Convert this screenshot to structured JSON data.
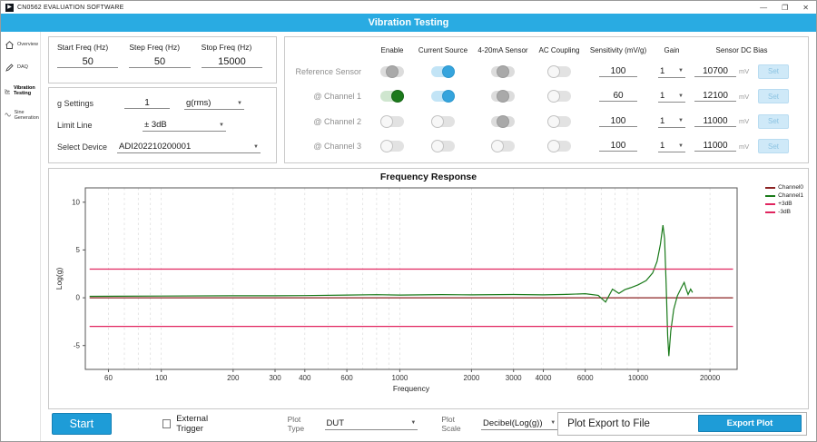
{
  "titlebar": {
    "app_title": "CN0562 EVALUATION SOFTWARE",
    "minimize": "—",
    "maximize": "❐",
    "close": "✕"
  },
  "header": {
    "title": "Vibration Testing"
  },
  "colors": {
    "accent_blue": "#29abe2",
    "toggle_green": "#1c7a1c",
    "button_blue": "#1e9cd7"
  },
  "sidebar": {
    "items": [
      {
        "label": "Overview",
        "icon": "home-icon",
        "active": false
      },
      {
        "label": "DAQ",
        "icon": "daq-icon",
        "active": false
      },
      {
        "label": "Vibration Testing",
        "icon": "vibration-chart-icon",
        "active": true
      },
      {
        "label": "Sine Generation",
        "icon": "sine-wave-icon",
        "active": false
      }
    ]
  },
  "settings": {
    "freq_fields": [
      {
        "label": "Start Freq (Hz)",
        "value": "50"
      },
      {
        "label": "Step Freq (Hz)",
        "value": "50"
      },
      {
        "label": "Stop Freq (Hz)",
        "value": "15000"
      }
    ],
    "g_settings": {
      "label": "g Settings",
      "value": "1",
      "unit": "g(rms)"
    },
    "limit_line": {
      "label": "Limit Line",
      "value": "± 3dB"
    },
    "select_device": {
      "label": "Select Device",
      "value": "ADI202210200001"
    }
  },
  "channel_table": {
    "columns": [
      "Enable",
      "Current Source",
      "4-20mA Sensor",
      "AC Coupling",
      "Sensitivity (mV/g)",
      "Gain",
      "Sensor DC Bias"
    ],
    "rows": [
      {
        "name": "Reference Sensor",
        "enable": "off-dark",
        "current_source": "on-blue",
        "sensor_420": "off-dark",
        "ac_coupling": "off",
        "sensitivity": "100",
        "gain": "1",
        "dc_bias": "10700",
        "bias_unit": "mV",
        "set_label": "Set"
      },
      {
        "name": "@ Channel 1",
        "enable": "on-green",
        "current_source": "on-blue",
        "sensor_420": "off-dark",
        "ac_coupling": "off",
        "sensitivity": "60",
        "gain": "1",
        "dc_bias": "12100",
        "bias_unit": "mV",
        "set_label": "Set"
      },
      {
        "name": "@ Channel 2",
        "enable": "off",
        "current_source": "off",
        "sensor_420": "off-dark",
        "ac_coupling": "off",
        "sensitivity": "100",
        "gain": "1",
        "dc_bias": "11000",
        "bias_unit": "mV",
        "set_label": "Set"
      },
      {
        "name": "@ Channel 3",
        "enable": "off",
        "current_source": "off",
        "sensor_420": "off",
        "ac_coupling": "off",
        "sensitivity": "100",
        "gain": "1",
        "dc_bias": "11000",
        "bias_unit": "mV",
        "set_label": "Set"
      }
    ]
  },
  "chart_data": {
    "type": "line",
    "title": "Frequency Response",
    "xlabel": "Frequency",
    "ylabel": "Log(g)",
    "x_scale": "log",
    "xlim": [
      48,
      26000
    ],
    "ylim": [
      -7.5,
      11.5
    ],
    "yticks": [
      -5,
      0,
      5,
      10
    ],
    "xticks": [
      60,
      100,
      200,
      300,
      400,
      600,
      1000,
      2000,
      3000,
      4000,
      6000,
      10000,
      20000
    ],
    "grid_freqs": [
      60,
      70,
      80,
      90,
      100,
      200,
      300,
      400,
      500,
      600,
      700,
      800,
      900,
      1000,
      2000,
      3000,
      4000,
      5000,
      6000,
      7000,
      8000,
      9000,
      10000,
      20000
    ],
    "grid": "vertical-dashed",
    "legend_position": "right-top",
    "series": [
      {
        "name": "Channel0",
        "color": "#8b2323",
        "width": 1.3,
        "points": [
          [
            50,
            0
          ],
          [
            25000,
            0
          ]
        ]
      },
      {
        "name": "Channel1",
        "color": "#1a7a1a",
        "width": 1.2,
        "points": [
          [
            50,
            0.15
          ],
          [
            100,
            0.18
          ],
          [
            200,
            0.2
          ],
          [
            300,
            0.2
          ],
          [
            400,
            0.22
          ],
          [
            600,
            0.28
          ],
          [
            800,
            0.32
          ],
          [
            1000,
            0.28
          ],
          [
            1500,
            0.33
          ],
          [
            2000,
            0.3
          ],
          [
            3000,
            0.34
          ],
          [
            4000,
            0.3
          ],
          [
            5000,
            0.35
          ],
          [
            6000,
            0.42
          ],
          [
            6800,
            0.25
          ],
          [
            7300,
            -0.45
          ],
          [
            7800,
            0.9
          ],
          [
            8300,
            0.45
          ],
          [
            8800,
            0.85
          ],
          [
            9300,
            1.05
          ],
          [
            10000,
            1.35
          ],
          [
            10800,
            1.8
          ],
          [
            11500,
            2.6
          ],
          [
            12000,
            3.8
          ],
          [
            12400,
            5.6
          ],
          [
            12700,
            7.6
          ],
          [
            12900,
            6.2
          ],
          [
            13100,
            1.5
          ],
          [
            13300,
            -4.0
          ],
          [
            13450,
            -6.1
          ],
          [
            13700,
            -3.5
          ],
          [
            14100,
            -1.2
          ],
          [
            14600,
            0.2
          ],
          [
            15200,
            1.1
          ],
          [
            15600,
            1.6
          ],
          [
            15900,
            0.9
          ],
          [
            16200,
            0.35
          ],
          [
            16600,
            0.9
          ],
          [
            16900,
            0.55
          ]
        ]
      },
      {
        "name": "+3dB",
        "color": "#e0255f",
        "width": 1.3,
        "points": [
          [
            50,
            3
          ],
          [
            25000,
            3
          ]
        ]
      },
      {
        "name": "-3dB",
        "color": "#e0255f",
        "width": 1.3,
        "points": [
          [
            50,
            -3
          ],
          [
            25000,
            -3
          ]
        ]
      }
    ]
  },
  "footer": {
    "start_label": "Start",
    "external_trigger_label": "External Trigger",
    "plot_type_label": "Plot Type",
    "plot_type_value": "DUT",
    "plot_scale_label": "Plot Scale",
    "plot_scale_value": "Decibel(Log(g))",
    "export_title": "Plot Export to File",
    "export_button": "Export Plot"
  }
}
